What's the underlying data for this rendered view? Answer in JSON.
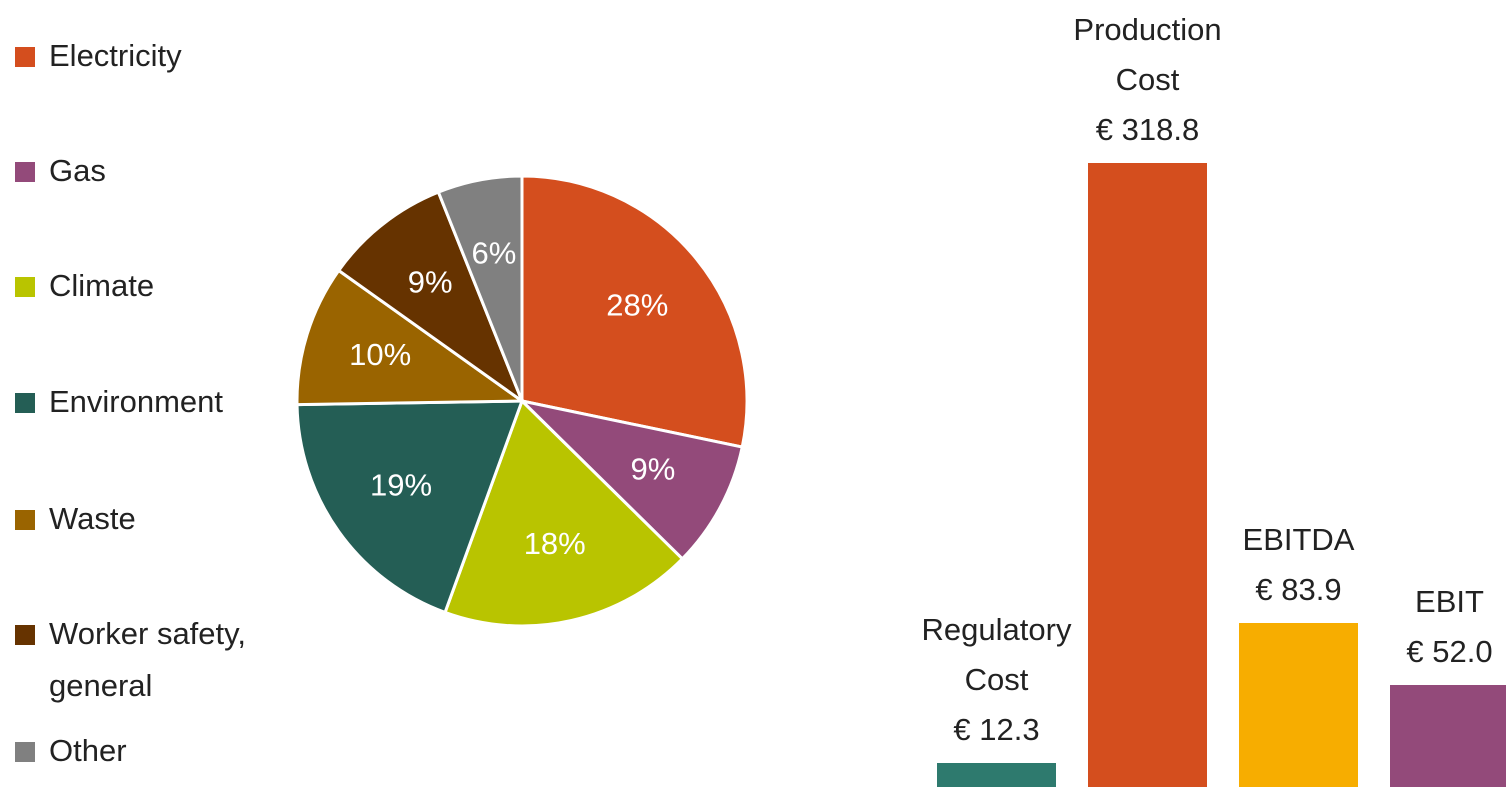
{
  "chart_data": [
    {
      "type": "pie",
      "categories": [
        "Electricity",
        "Gas",
        "Climate",
        "Environment",
        "Waste",
        "Worker safety, general",
        "Other"
      ],
      "values": [
        28,
        9,
        18,
        19,
        10,
        9,
        6
      ],
      "value_labels": [
        "28%",
        "9%",
        "18%",
        "19%",
        "10%",
        "9%",
        "6%"
      ],
      "colors": [
        "#d44e1e",
        "#934a7a",
        "#b9c400",
        "#245e55",
        "#9a6400",
        "#663300",
        "#808080"
      ],
      "legend": "left"
    },
    {
      "type": "bar",
      "categories": [
        "Regulatory Cost",
        "Production Cost",
        "EBITDA",
        "EBIT"
      ],
      "values": [
        12.3,
        318.8,
        83.9,
        52.0
      ],
      "value_labels": [
        "€ 12.3",
        "€ 318.8",
        "€ 83.9",
        "€ 52.0"
      ],
      "colors": [
        "#2e7a6e",
        "#d44e1e",
        "#f7ad00",
        "#934a7a"
      ]
    }
  ]
}
